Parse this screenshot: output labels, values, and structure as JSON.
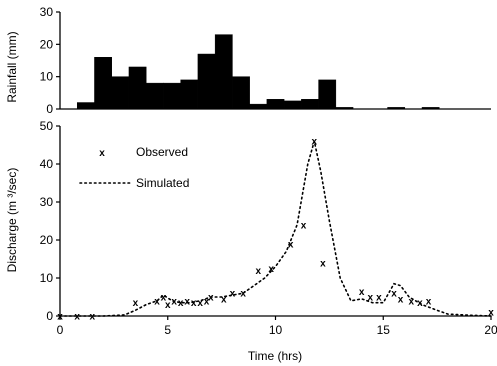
{
  "chart_data": [
    {
      "type": "bar",
      "ylabel": "Rainfall (mm)",
      "ylim": [
        0,
        30
      ],
      "yticks": [
        0,
        10,
        20,
        30
      ],
      "xlim": [
        0,
        20
      ],
      "bar_color": "#000000",
      "bars": [
        {
          "x0": 0.8,
          "x1": 1.6,
          "value": 2
        },
        {
          "x0": 1.6,
          "x1": 2.4,
          "value": 16
        },
        {
          "x0": 2.4,
          "x1": 3.2,
          "value": 10
        },
        {
          "x0": 3.2,
          "x1": 4.0,
          "value": 13
        },
        {
          "x0": 4.0,
          "x1": 4.8,
          "value": 8
        },
        {
          "x0": 4.8,
          "x1": 5.6,
          "value": 8
        },
        {
          "x0": 5.6,
          "x1": 6.4,
          "value": 9
        },
        {
          "x0": 6.4,
          "x1": 7.2,
          "value": 17
        },
        {
          "x0": 7.2,
          "x1": 8.0,
          "value": 23
        },
        {
          "x0": 8.0,
          "x1": 8.8,
          "value": 10
        },
        {
          "x0": 8.8,
          "x1": 9.6,
          "value": 1.5
        },
        {
          "x0": 9.6,
          "x1": 10.4,
          "value": 3
        },
        {
          "x0": 10.4,
          "x1": 11.2,
          "value": 2.5
        },
        {
          "x0": 11.2,
          "x1": 12.0,
          "value": 3
        },
        {
          "x0": 12.0,
          "x1": 12.8,
          "value": 9
        },
        {
          "x0": 12.8,
          "x1": 13.6,
          "value": 0.5
        },
        {
          "x0": 15.2,
          "x1": 16.0,
          "value": 0.5
        },
        {
          "x0": 16.8,
          "x1": 17.6,
          "value": 0.5
        }
      ]
    },
    {
      "type": "line",
      "xlabel": "Time (hrs)",
      "ylabel": "Discharge (m ³/sec)",
      "xlim": [
        0,
        20
      ],
      "ylim": [
        0,
        50
      ],
      "xticks": [
        0,
        5,
        10,
        15,
        20
      ],
      "yticks": [
        0,
        10,
        20,
        30,
        40,
        50
      ],
      "series": [
        {
          "name": "Observed",
          "style": "markers",
          "marker": "x",
          "points": [
            [
              0,
              0
            ],
            [
              0.8,
              0
            ],
            [
              1.5,
              0
            ],
            [
              3.5,
              3.5
            ],
            [
              4.5,
              4
            ],
            [
              4.8,
              5
            ],
            [
              5.0,
              3
            ],
            [
              5.3,
              4
            ],
            [
              5.6,
              3.5
            ],
            [
              5.9,
              4
            ],
            [
              6.2,
              3.5
            ],
            [
              6.5,
              3.5
            ],
            [
              6.8,
              4
            ],
            [
              7.0,
              5
            ],
            [
              7.6,
              4.5
            ],
            [
              8.0,
              6
            ],
            [
              8.5,
              6
            ],
            [
              9.2,
              12
            ],
            [
              9.8,
              12.5
            ],
            [
              10.7,
              19
            ],
            [
              11.3,
              24
            ],
            [
              11.8,
              46
            ],
            [
              12.2,
              14
            ],
            [
              14.0,
              6.5
            ],
            [
              14.4,
              5
            ],
            [
              14.8,
              5
            ],
            [
              15.5,
              6
            ],
            [
              15.8,
              4.5
            ],
            [
              16.3,
              4
            ],
            [
              16.7,
              3.5
            ],
            [
              17.1,
              4
            ],
            [
              20.0,
              1
            ]
          ]
        },
        {
          "name": "Simulated",
          "style": "dotted",
          "points": [
            [
              0,
              0
            ],
            [
              1,
              0
            ],
            [
              2,
              0
            ],
            [
              3,
              0.3
            ],
            [
              3.5,
              1.5
            ],
            [
              4.0,
              3
            ],
            [
              4.5,
              4
            ],
            [
              4.8,
              5.5
            ],
            [
              5.2,
              4
            ],
            [
              5.6,
              3.5
            ],
            [
              6.0,
              3.5
            ],
            [
              6.5,
              4
            ],
            [
              7.0,
              5
            ],
            [
              7.5,
              5
            ],
            [
              8.0,
              5.5
            ],
            [
              8.5,
              6
            ],
            [
              9.0,
              8
            ],
            [
              9.5,
              10
            ],
            [
              10.0,
              13
            ],
            [
              10.5,
              17
            ],
            [
              11.0,
              24
            ],
            [
              11.5,
              40
            ],
            [
              11.8,
              46
            ],
            [
              12.1,
              38
            ],
            [
              12.5,
              25
            ],
            [
              13.0,
              10
            ],
            [
              13.5,
              4
            ],
            [
              14.0,
              4.5
            ],
            [
              14.5,
              3.5
            ],
            [
              15.0,
              3.5
            ],
            [
              15.5,
              8.5
            ],
            [
              15.8,
              8
            ],
            [
              16.2,
              5
            ],
            [
              16.8,
              3
            ],
            [
              17.5,
              1.5
            ],
            [
              18.0,
              0.5
            ],
            [
              19.0,
              0.2
            ],
            [
              20.0,
              0
            ]
          ]
        }
      ],
      "legend": {
        "placement": "top-left",
        "observed_label": "Observed",
        "simulated_label": "Simulated"
      }
    }
  ]
}
